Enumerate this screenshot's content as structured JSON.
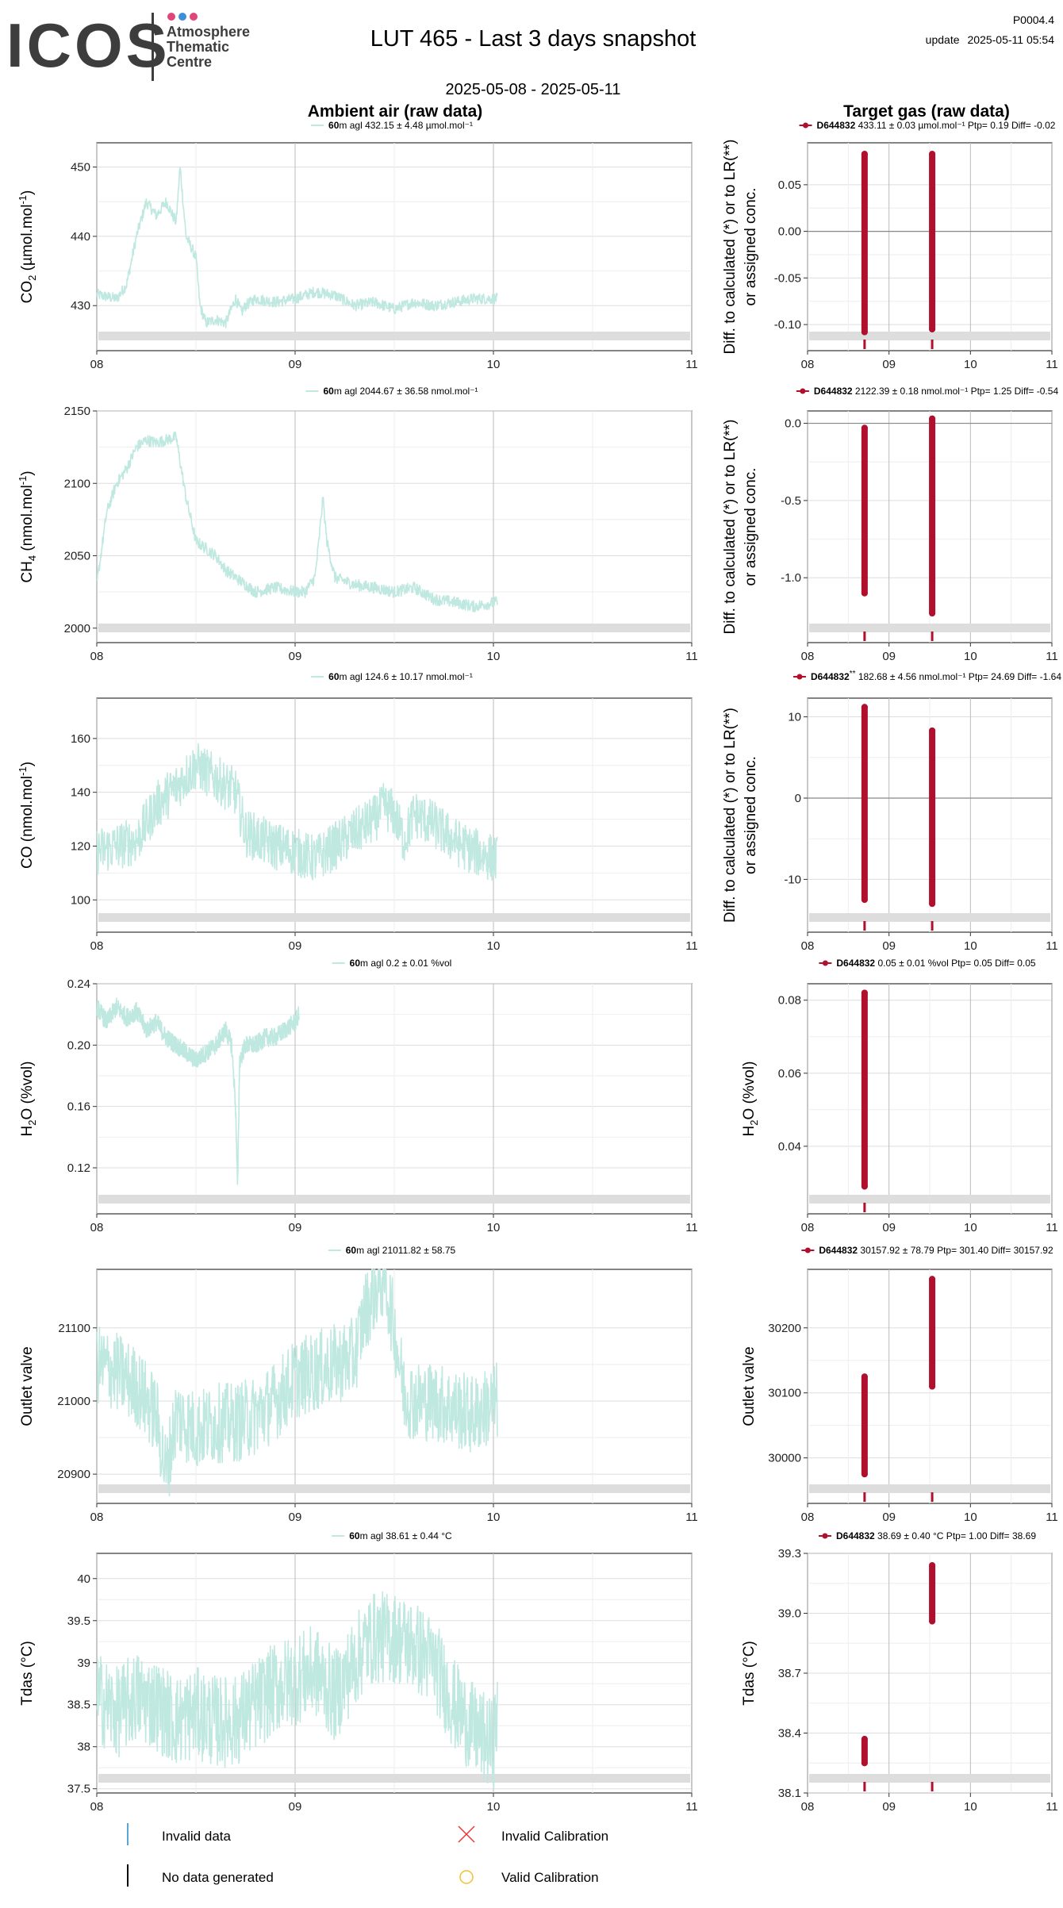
{
  "header": {
    "logo_text": "ICOS",
    "logo_subtitle": [
      "Atmosphere",
      "Thematic",
      "Centre"
    ],
    "logo_dot_colors": [
      "#e0457b",
      "#3d8fd6",
      "#e0457b"
    ],
    "title": "LUT 465 - Last 3 days snapshot",
    "code": "P0004.4",
    "update_label": "update",
    "update_time": "2025-05-11 05:54",
    "date_range": "2025-05-08 - 2025-05-11",
    "left_heading": "Ambient air (raw data)",
    "right_heading": "Target gas (raw data)"
  },
  "colors": {
    "ambient": "#bfe8e0",
    "target": "#b0102e",
    "grid": "#dddddd",
    "grid_major": "#bbbbbb",
    "nodata_band": "#dddddd",
    "invalid_data": "#5aa6d6",
    "invalid_cal": "#e8383b",
    "valid_cal": "#f0c030"
  },
  "x_ticks": [
    "08",
    "09",
    "10",
    "11"
  ],
  "chart_data": [
    {
      "type": "line",
      "panel": "ambient-co2",
      "legend": {
        "bold": "60",
        "text": "m agl 432.15 ± 4.48 µmol.mol⁻¹"
      },
      "ylabel_parts": [
        "CO",
        "2",
        " (µmol.mol",
        "-1",
        ")"
      ],
      "ylim": [
        423.5,
        453.5
      ],
      "yticks": [
        430,
        440,
        450
      ],
      "x_range": [
        0,
        3
      ],
      "x_end": 2.02,
      "keypoints": [
        [
          0,
          431.6
        ],
        [
          0.1,
          431
        ],
        [
          0.15,
          433
        ],
        [
          0.2,
          440
        ],
        [
          0.25,
          445
        ],
        [
          0.3,
          443
        ],
        [
          0.35,
          445
        ],
        [
          0.4,
          442
        ],
        [
          0.42,
          450
        ],
        [
          0.45,
          440
        ],
        [
          0.5,
          437
        ],
        [
          0.52,
          430
        ],
        [
          0.55,
          427.5
        ],
        [
          0.6,
          428
        ],
        [
          0.65,
          427.5
        ],
        [
          0.7,
          431
        ],
        [
          0.73,
          429
        ],
        [
          0.75,
          430
        ],
        [
          0.8,
          431
        ],
        [
          0.9,
          430.5
        ],
        [
          1,
          431
        ],
        [
          1.1,
          432
        ],
        [
          1.2,
          431.5
        ],
        [
          1.3,
          430
        ],
        [
          1.4,
          430.5
        ],
        [
          1.5,
          429.5
        ],
        [
          1.6,
          430.5
        ],
        [
          1.7,
          430
        ],
        [
          1.8,
          430.5
        ],
        [
          1.9,
          431
        ],
        [
          2.02,
          431
        ]
      ],
      "noise": 0.8,
      "band": true
    },
    {
      "type": "line",
      "panel": "ambient-ch4",
      "legend": {
        "bold": "60",
        "text": "m agl 2044.67 ± 36.58 nmol.mol⁻¹"
      },
      "ylabel_parts": [
        "CH",
        "4",
        " (nmol.mol",
        "-1",
        ")"
      ],
      "ylim": [
        1990,
        2150
      ],
      "yticks": [
        2000,
        2050,
        2100,
        2150
      ],
      "x_range": [
        0,
        3
      ],
      "x_end": 2.02,
      "keypoints": [
        [
          0,
          2030
        ],
        [
          0.05,
          2080
        ],
        [
          0.1,
          2100
        ],
        [
          0.15,
          2110
        ],
        [
          0.2,
          2125
        ],
        [
          0.25,
          2130
        ],
        [
          0.3,
          2128
        ],
        [
          0.35,
          2130
        ],
        [
          0.4,
          2132
        ],
        [
          0.45,
          2090
        ],
        [
          0.5,
          2060
        ],
        [
          0.55,
          2055
        ],
        [
          0.6,
          2050
        ],
        [
          0.65,
          2040
        ],
        [
          0.7,
          2035
        ],
        [
          0.75,
          2030
        ],
        [
          0.8,
          2025
        ],
        [
          0.9,
          2028
        ],
        [
          1,
          2025
        ],
        [
          1.05,
          2025
        ],
        [
          1.1,
          2035
        ],
        [
          1.12,
          2060
        ],
        [
          1.14,
          2090
        ],
        [
          1.16,
          2060
        ],
        [
          1.2,
          2035
        ],
        [
          1.3,
          2030
        ],
        [
          1.4,
          2028
        ],
        [
          1.5,
          2025
        ],
        [
          1.6,
          2028
        ],
        [
          1.7,
          2020
        ],
        [
          1.8,
          2018
        ],
        [
          1.9,
          2015
        ],
        [
          2.02,
          2018
        ]
      ],
      "noise": 4,
      "band": true
    },
    {
      "type": "line",
      "panel": "ambient-co",
      "legend": {
        "bold": "60",
        "text": "m agl 124.6 ± 10.17 nmol.mol⁻¹"
      },
      "ylabel_parts": [
        "CO (nmol.mol",
        "-1",
        ")"
      ],
      "ylim": [
        88,
        175
      ],
      "yticks": [
        100,
        120,
        140,
        160
      ],
      "x_range": [
        0,
        3
      ],
      "x_end": 2.02,
      "keypoints": [
        [
          0,
          118
        ],
        [
          0.2,
          122
        ],
        [
          0.3,
          135
        ],
        [
          0.4,
          142
        ],
        [
          0.5,
          150
        ],
        [
          0.6,
          145
        ],
        [
          0.7,
          140
        ],
        [
          0.75,
          125
        ],
        [
          0.9,
          120
        ],
        [
          1,
          118
        ],
        [
          1.1,
          115
        ],
        [
          1.2,
          120
        ],
        [
          1.3,
          125
        ],
        [
          1.4,
          130
        ],
        [
          1.45,
          135
        ],
        [
          1.5,
          132
        ],
        [
          1.55,
          122
        ],
        [
          1.6,
          132
        ],
        [
          1.7,
          128
        ],
        [
          1.8,
          122
        ],
        [
          1.9,
          118
        ],
        [
          2.02,
          115
        ]
      ],
      "noise": 9,
      "band": true
    },
    {
      "type": "line",
      "panel": "ambient-h2o",
      "legend": {
        "bold": "60",
        "text": "m agl 0.2 ± 0.01 %vol"
      },
      "ylabel_parts": [
        "H",
        "2",
        "O (%vol)"
      ],
      "ylim": [
        0.09,
        0.24
      ],
      "yticks": [
        0.12,
        0.16,
        0.2,
        0.24
      ],
      "x_range": [
        0,
        3
      ],
      "x_end": 1.02,
      "keypoints": [
        [
          0,
          0.225
        ],
        [
          0.05,
          0.215
        ],
        [
          0.1,
          0.225
        ],
        [
          0.15,
          0.218
        ],
        [
          0.2,
          0.222
        ],
        [
          0.25,
          0.21
        ],
        [
          0.3,
          0.215
        ],
        [
          0.35,
          0.205
        ],
        [
          0.4,
          0.2
        ],
        [
          0.45,
          0.195
        ],
        [
          0.5,
          0.19
        ],
        [
          0.55,
          0.195
        ],
        [
          0.6,
          0.2
        ],
        [
          0.65,
          0.21
        ],
        [
          0.68,
          0.2
        ],
        [
          0.7,
          0.16
        ],
        [
          0.71,
          0.105
        ],
        [
          0.72,
          0.19
        ],
        [
          0.75,
          0.2
        ],
        [
          0.8,
          0.2
        ],
        [
          0.85,
          0.205
        ],
        [
          0.9,
          0.205
        ],
        [
          0.95,
          0.21
        ],
        [
          1.0,
          0.215
        ],
        [
          1.02,
          0.22
        ]
      ],
      "noise": 0.006,
      "band": true
    },
    {
      "type": "line",
      "panel": "ambient-outlet",
      "legend": {
        "bold": "60",
        "text": "m agl 21011.82 ± 58.75"
      },
      "ylabel_parts": [
        "Outlet valve"
      ],
      "ylim": [
        20860,
        21180
      ],
      "yticks": [
        20900,
        21000,
        21100
      ],
      "x_range": [
        0,
        3
      ],
      "x_end": 2.02,
      "keypoints": [
        [
          0,
          21050
        ],
        [
          0.1,
          21040
        ],
        [
          0.2,
          21020
        ],
        [
          0.3,
          20980
        ],
        [
          0.35,
          20900
        ],
        [
          0.4,
          20980
        ],
        [
          0.5,
          20960
        ],
        [
          0.6,
          20970
        ],
        [
          0.7,
          20970
        ],
        [
          0.8,
          20980
        ],
        [
          0.9,
          21000
        ],
        [
          1,
          21030
        ],
        [
          1.1,
          21040
        ],
        [
          1.2,
          21050
        ],
        [
          1.3,
          21060
        ],
        [
          1.35,
          21120
        ],
        [
          1.4,
          21150
        ],
        [
          1.45,
          21170
        ],
        [
          1.5,
          21100
        ],
        [
          1.55,
          21010
        ],
        [
          1.6,
          21000
        ],
        [
          1.7,
          21000
        ],
        [
          1.8,
          20990
        ],
        [
          1.9,
          20980
        ],
        [
          2.02,
          21000
        ]
      ],
      "noise": 55,
      "band": true
    },
    {
      "type": "line",
      "panel": "ambient-tdas",
      "legend": {
        "bold": "60",
        "text": "m agl 38.61 ± 0.44 °C"
      },
      "ylabel_parts": [
        "Tdas (°C)"
      ],
      "ylim": [
        37.45,
        40.3
      ],
      "yticks": [
        37.5,
        38,
        38.5,
        39,
        39.5,
        40
      ],
      "x_range": [
        0,
        3
      ],
      "x_end": 2.02,
      "keypoints": [
        [
          0,
          38.6
        ],
        [
          0.1,
          38.4
        ],
        [
          0.2,
          38.6
        ],
        [
          0.3,
          38.5
        ],
        [
          0.4,
          38.3
        ],
        [
          0.5,
          38.4
        ],
        [
          0.6,
          38.3
        ],
        [
          0.7,
          38.3
        ],
        [
          0.8,
          38.5
        ],
        [
          0.9,
          38.7
        ],
        [
          1,
          38.8
        ],
        [
          1.1,
          38.9
        ],
        [
          1.2,
          38.6
        ],
        [
          1.3,
          39.0
        ],
        [
          1.35,
          39.2
        ],
        [
          1.4,
          39.3
        ],
        [
          1.5,
          39.3
        ],
        [
          1.6,
          39.2
        ],
        [
          1.7,
          39.0
        ],
        [
          1.8,
          38.5
        ],
        [
          1.9,
          38.2
        ],
        [
          2.0,
          38.0
        ],
        [
          2.02,
          38.5
        ]
      ],
      "noise": 0.55,
      "band": true
    },
    {
      "type": "scatter",
      "panel": "target-co2",
      "legend": {
        "bold": "D644832",
        "text": " 433.11 ± 0.03 µmol.mol⁻¹ Ptp= 0.19 Diff= -0.02"
      },
      "ylabel_lines": [
        "Diff. to calculated (*) or to LR(**)",
        "or assigned conc."
      ],
      "ylim": [
        -0.128,
        0.095
      ],
      "yticks": [
        -0.1,
        -0.05,
        0,
        0.05
      ],
      "ytick_labels": [
        "-0.10",
        "-0.05",
        "0.00",
        "0.05"
      ],
      "zero_line": true,
      "x_range": [
        0,
        3
      ],
      "clusters": [
        {
          "x": 0.7,
          "min": -0.108,
          "max": 0.083
        },
        {
          "x": 1.53,
          "min": -0.105,
          "max": 0.083
        }
      ],
      "band": true
    },
    {
      "type": "scatter",
      "panel": "target-ch4",
      "legend": {
        "bold": "D644832",
        "text": " 2122.39 ± 0.18 nmol.mol⁻¹ Ptp= 1.25 Diff= -0.54"
      },
      "ylabel_lines": [
        "Diff. to calculated (*) or to LR(**)",
        "or assigned conc."
      ],
      "ylim": [
        -1.42,
        0.08
      ],
      "yticks": [
        -1.0,
        -0.5,
        0.0
      ],
      "ytick_labels": [
        "-1.0",
        "-0.5",
        "0.0"
      ],
      "zero_line": true,
      "x_range": [
        0,
        3
      ],
      "clusters": [
        {
          "x": 0.7,
          "min": -1.1,
          "max": -0.03
        },
        {
          "x": 1.53,
          "min": -1.23,
          "max": 0.03
        }
      ],
      "band": true
    },
    {
      "type": "scatter",
      "panel": "target-co",
      "legend": {
        "bold": "D644832",
        "sup": "**",
        "text": " 182.68 ± 4.56 nmol.mol⁻¹ Ptp= 24.69 Diff= -1.64"
      },
      "ylabel_lines": [
        "Diff. to calculated (*) or to LR(**)",
        "or assigned conc."
      ],
      "ylim": [
        -16.5,
        12.3
      ],
      "yticks": [
        -10,
        0,
        10
      ],
      "ytick_labels": [
        "-10",
        "0",
        "10"
      ],
      "zero_line": true,
      "x_range": [
        0,
        3
      ],
      "clusters": [
        {
          "x": 0.7,
          "min": -12.5,
          "max": 11.2
        },
        {
          "x": 1.53,
          "min": -13,
          "max": 8.3
        }
      ],
      "band": true
    },
    {
      "type": "scatter",
      "panel": "target-h2o",
      "legend": {
        "bold": "D644832",
        "text": " 0.05 ± 0.01 %vol Ptp= 0.05 Diff= 0.05"
      },
      "ylabel_parts": [
        "H",
        "2",
        "O (%vol)"
      ],
      "ylim": [
        0.0215,
        0.0845
      ],
      "yticks": [
        0.04,
        0.06,
        0.08
      ],
      "ytick_labels": [
        "0.04",
        "0.06",
        "0.08"
      ],
      "x_range": [
        0,
        3
      ],
      "clusters": [
        {
          "x": 0.7,
          "min": 0.029,
          "max": 0.082
        }
      ],
      "band": true
    },
    {
      "type": "scatter",
      "panel": "target-outlet",
      "legend": {
        "bold": "D644832",
        "text": " 30157.92 ± 78.79 Ptp= 301.40 Diff= 30157.92"
      },
      "ylabel_parts": [
        "Outlet valve"
      ],
      "ylim": [
        29930,
        30290
      ],
      "yticks": [
        30000,
        30100,
        30200
      ],
      "ytick_labels": [
        "30000",
        "30100",
        "30200"
      ],
      "x_range": [
        0,
        3
      ],
      "clusters": [
        {
          "x": 0.7,
          "min": 29975,
          "max": 30125
        },
        {
          "x": 1.53,
          "min": 30110,
          "max": 30275
        }
      ],
      "band": true
    },
    {
      "type": "scatter",
      "panel": "target-tdas",
      "legend": {
        "bold": "D644832",
        "text": " 38.69 ± 0.40 °C Ptp= 1.00 Diff= 38.69"
      },
      "ylabel_parts": [
        "Tdas (°C)"
      ],
      "ylim": [
        38.1,
        39.3
      ],
      "yticks": [
        38.1,
        38.4,
        38.7,
        39.0,
        39.3
      ],
      "ytick_labels": [
        "38.1",
        "38.4",
        "38.7",
        "39.0",
        "39.3"
      ],
      "x_range": [
        0,
        3
      ],
      "clusters": [
        {
          "x": 0.7,
          "min": 38.25,
          "max": 38.37
        },
        {
          "x": 1.53,
          "min": 38.96,
          "max": 39.24
        }
      ],
      "band": true
    }
  ],
  "footer_legend": [
    {
      "label": "Invalid data",
      "marker": "vbar-blue"
    },
    {
      "label": "Invalid Calibration",
      "marker": "x-red"
    },
    {
      "label": "No data generated",
      "marker": "vbar-black"
    },
    {
      "label": "Valid Calibration",
      "marker": "circle-yellow"
    }
  ]
}
